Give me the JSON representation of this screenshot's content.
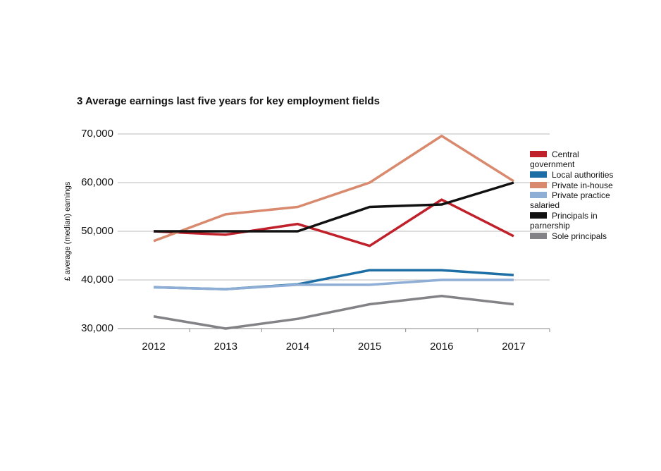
{
  "chart_data": {
    "type": "line",
    "title": "3 Average earnings last five years for key employment fields",
    "y_label": "£ average (median) earnings",
    "categories": [
      "2012",
      "2013",
      "2014",
      "2015",
      "2016",
      "2017"
    ],
    "series": [
      {
        "name": "Central government",
        "color": "#c0202a",
        "values": [
          50000,
          49300,
          51500,
          47000,
          56500,
          49000
        ]
      },
      {
        "name": "Local authorities",
        "color": "#1c6ea4",
        "values": [
          38500,
          38100,
          39100,
          42000,
          42000,
          41000
        ]
      },
      {
        "name": "Private in-house",
        "color": "#d98a6e",
        "values": [
          48000,
          53500,
          55000,
          60000,
          69600,
          60300
        ]
      },
      {
        "name": "Private practice salaried",
        "color": "#8eaed6",
        "values": [
          38500,
          38100,
          39000,
          39000,
          40000,
          40000
        ]
      },
      {
        "name": "Principals in parnership",
        "color": "#111111",
        "values": [
          50000,
          50000,
          50000,
          55000,
          55500,
          60000
        ]
      },
      {
        "name": "Sole principals",
        "color": "#828287",
        "values": [
          32500,
          30000,
          32000,
          35000,
          36700,
          35000
        ]
      }
    ],
    "ylim": [
      30000,
      70000
    ],
    "yticks": [
      {
        "value": 30000,
        "label": "30,000"
      },
      {
        "value": 40000,
        "label": "40,000"
      },
      {
        "value": 50000,
        "label": "50,000"
      },
      {
        "value": 60000,
        "label": "60,000"
      },
      {
        "value": 70000,
        "label": "70,000"
      }
    ],
    "grid": true
  }
}
